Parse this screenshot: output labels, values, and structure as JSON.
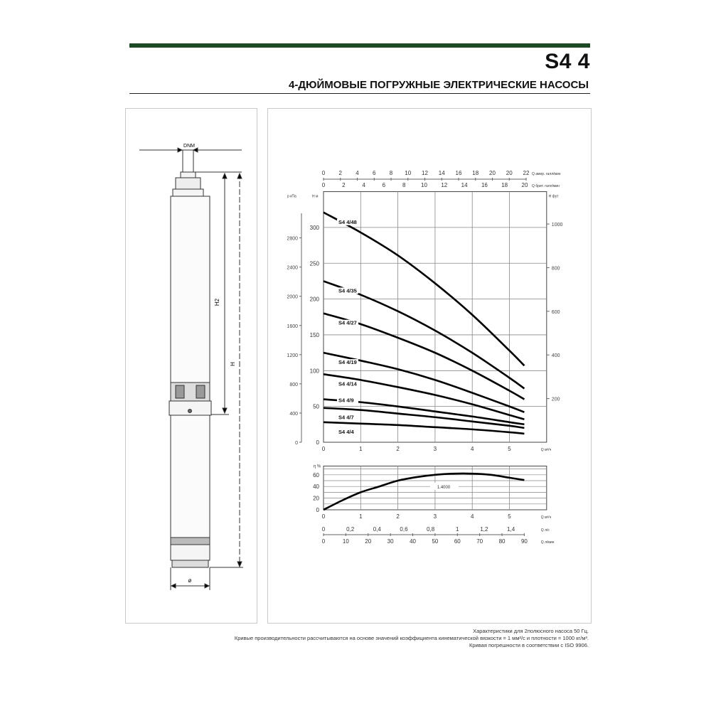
{
  "header": {
    "model": "S4 4",
    "subtitle": "4-ДЮЙМОВЫЕ ПОГРУЖНЫЕ ЭЛЕКТРИЧЕСКИЕ НАСОСЫ",
    "brand_color": "#1d4a22"
  },
  "drawing": {
    "dnm_label": "DNM",
    "h2_label": "H2",
    "h_label": "H",
    "diameter_label": "ø"
  },
  "footer": {
    "line1": "Характеристики для 2полюсного насоса 50 Гц.",
    "line2": "Кривые производительности рассчитываются на основе значений коэффициента кинематической вязкости = 1 мм²/с и плотности = 1000 кг/м³.",
    "line3": "Кривая погрешности в соответствии с ISO 9906."
  },
  "chart_data": [
    {
      "type": "line",
      "title": "",
      "xlabel": "Q м³/ч",
      "ylabel": "H м",
      "xlim": [
        0,
        6
      ],
      "ylim": [
        0,
        350
      ],
      "grid": true,
      "x_ticks": [
        "0",
        "1",
        "2",
        "3",
        "4",
        "5"
      ],
      "y_ticks": [
        "0",
        "50",
        "100",
        "150",
        "200",
        "250",
        "300"
      ],
      "left_outer_axis": {
        "label": "p кПа",
        "ticks": [
          "0",
          "400",
          "800",
          "1200",
          "1600",
          "2000",
          "2400",
          "2800"
        ]
      },
      "right_axis": {
        "label": "H фут",
        "ticks": [
          "200",
          "400",
          "600",
          "800",
          "1000"
        ]
      },
      "top_axis_1": {
        "label": "Q амер. галл/мин",
        "ticks": [
          "0",
          "2",
          "4",
          "6",
          "8",
          "10",
          "12",
          "14",
          "16",
          "18",
          "20",
          "20",
          "22"
        ]
      },
      "top_axis_2": {
        "label": "Q брит. галл/мин",
        "ticks": [
          "0",
          "2",
          "4",
          "6",
          "8",
          "10",
          "12",
          "14",
          "16",
          "18",
          "20"
        ]
      },
      "x": [
        0,
        1,
        2,
        3,
        4,
        5,
        5.4
      ],
      "series": [
        {
          "name": "S4 4/48",
          "values": [
            321,
            293,
            261,
            222,
            178,
            128,
            107
          ]
        },
        {
          "name": "S4 4/35",
          "values": [
            225,
            206,
            183,
            156,
            125,
            90,
            75
          ]
        },
        {
          "name": "S4 4/27",
          "values": [
            180,
            165,
            146,
            125,
            100,
            72,
            60
          ]
        },
        {
          "name": "S4 4/19",
          "values": [
            125,
            114,
            102,
            87,
            69,
            50,
            42
          ]
        },
        {
          "name": "S4 4/14",
          "values": [
            95,
            87,
            77,
            66,
            53,
            38,
            32
          ]
        },
        {
          "name": "S4 4/9",
          "values": [
            60,
            56,
            50,
            43,
            36,
            28,
            25
          ]
        },
        {
          "name": "S4 4/7",
          "values": [
            48,
            45,
            40,
            35,
            29,
            23,
            20
          ]
        },
        {
          "name": "S4 4/4",
          "values": [
            28,
            26,
            24,
            21,
            18,
            14,
            12
          ]
        }
      ]
    },
    {
      "type": "line",
      "title": "",
      "xlabel": "Q м³/ч",
      "ylabel": "η %",
      "xlim": [
        0,
        6
      ],
      "ylim": [
        0,
        70
      ],
      "grid": true,
      "annotation": "1.4000",
      "x_ticks": [
        "0",
        "1",
        "2",
        "3",
        "4",
        "5"
      ],
      "y_ticks": [
        "0",
        "20",
        "40",
        "60"
      ],
      "bottom_axis_2": {
        "label": "Q л/с",
        "ticks": [
          "0",
          "0,2",
          "0,4",
          "0,6",
          "0,8",
          "1",
          "1,2",
          "1,4"
        ]
      },
      "bottom_axis_3": {
        "label": "Q л/мин",
        "ticks": [
          "0",
          "10",
          "20",
          "30",
          "40",
          "50",
          "60",
          "70",
          "80",
          "90"
        ]
      },
      "x": [
        0,
        0.5,
        1,
        1.5,
        2,
        2.5,
        3,
        3.5,
        4,
        4.5,
        5,
        5.4
      ],
      "series": [
        {
          "values": [
            0,
            16,
            30,
            40,
            50,
            56,
            60,
            62,
            62,
            60,
            55,
            51
          ]
        }
      ]
    }
  ]
}
